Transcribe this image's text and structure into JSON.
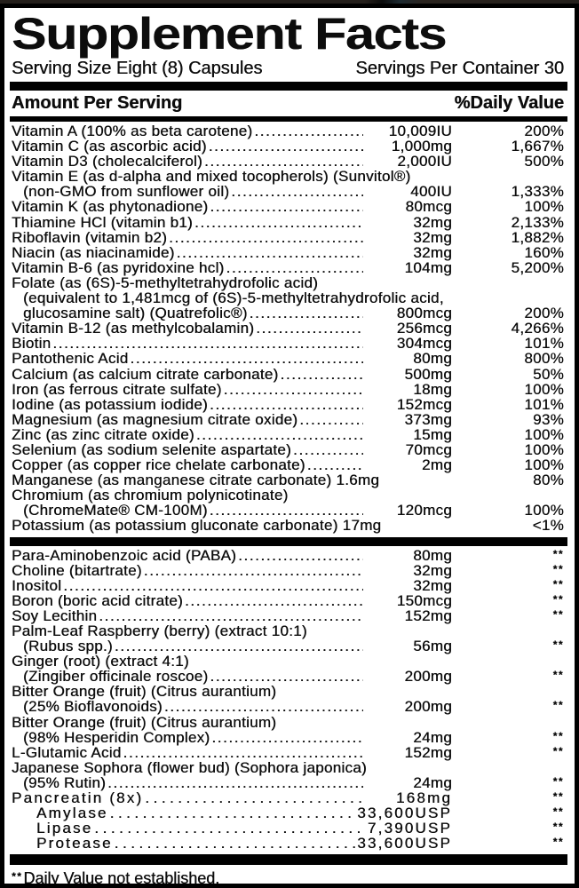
{
  "colors": {
    "background": "#ffffff",
    "text": "#000000",
    "bars": "#000000",
    "top_strip": "#241f1b"
  },
  "label": {
    "title": "Supplement Facts",
    "serving_size": "Serving Size Eight (8) Capsules",
    "servings_per_container": "Servings Per Container 30",
    "column_headers": {
      "amount": "Amount Per Serving",
      "daily_value": "%Daily Value"
    },
    "footnote": {
      "marker": "**",
      "text": "Daily Value not established."
    },
    "sections": [
      {
        "rows": [
          {
            "text": "Vitamin A (100% as beta carotene)",
            "amount": "10,009IU",
            "dv": "200%",
            "dots": true
          },
          {
            "text": "Vitamin C (as ascorbic acid)",
            "amount": "1,000mg",
            "dv": "1,667%",
            "dots": true
          },
          {
            "text": "Vitamin D3 (cholecalciferol)",
            "amount": "2,000IU",
            "dv": "500%",
            "dots": true
          },
          {
            "text": "Vitamin E (as d-alpha and mixed tocopherols) (Sunvitol®)"
          },
          {
            "text": "(non-GMO from sunflower oil)",
            "indent": 1,
            "amount": "400IU",
            "dv": "1,333%",
            "dots": true
          },
          {
            "text": "Vitamin K (as phytonadione)",
            "amount": "80mcg",
            "dv": "100%",
            "dots": true
          },
          {
            "text": "Thiamine HCl (vitamin b1)",
            "amount": "32mg",
            "dv": "2,133%",
            "dots": true
          },
          {
            "text": "Riboflavin (vitamin b2)",
            "amount": "32mg",
            "dv": "1,882%",
            "dots": true
          },
          {
            "text": "Niacin (as niacinamide)",
            "amount": "32mg",
            "dv": "160%",
            "dots": true
          },
          {
            "text": "Vitamin B-6 (as pyridoxine hcl)",
            "amount": "104mg",
            "dv": "5,200%",
            "dots": true
          },
          {
            "text": "Folate (as (6S)-5-methyltetrahydrofolic acid)"
          },
          {
            "text": "(equivalent to 1,481mcg of (6S)-5-methyltetrahydrofolic acid,",
            "indent": 1
          },
          {
            "text": "glucosamine salt) (Quatrefolic®)",
            "indent": 1,
            "amount": "800mcg",
            "dv": "200%",
            "dots": true
          },
          {
            "text": "Vitamin B-12 (as methylcobalamin)",
            "amount": "256mcg",
            "dv": "4,266%",
            "dots": true
          },
          {
            "text": "Biotin",
            "amount": "304mcg",
            "dv": "101%",
            "dots": true
          },
          {
            "text": "Pantothenic Acid",
            "amount": "80mg",
            "dv": "800%",
            "dots": true
          },
          {
            "text": "Calcium (as calcium citrate carbonate)",
            "amount": "500mg",
            "dv": "50%",
            "dots": true
          },
          {
            "text": "Iron (as ferrous citrate sulfate)",
            "amount": "18mg",
            "dv": "100%",
            "dots": true
          },
          {
            "text": "Iodine (as potassium iodide)",
            "amount": "152mcg",
            "dv": "101%",
            "dots": true
          },
          {
            "text": "Magnesium (as magnesium citrate oxide)",
            "amount": "373mg",
            "dv": "93%",
            "dots": true
          },
          {
            "text": "Zinc (as zinc citrate oxide)",
            "amount": "15mg",
            "dv": "100%",
            "dots": true
          },
          {
            "text": "Selenium (as sodium selenite aspartate)",
            "amount": "70mcg",
            "dv": "100%",
            "dots": true
          },
          {
            "text": "Copper (as copper rice chelate carbonate)",
            "amount": "2mg",
            "dv": "100%",
            "dots": true
          },
          {
            "text": "Manganese (as manganese citrate carbonate)",
            "amount": "1.6mg",
            "dv": "80%",
            "dots": false
          },
          {
            "text": "Chromium (as chromium polynicotinate)"
          },
          {
            "text": "(ChromeMate® CM-100M)",
            "indent": 1,
            "amount": "120mcg",
            "dv": "100%",
            "dots": true
          },
          {
            "text": "Potassium (as potassium gluconate carbonate)",
            "amount": "17mg",
            "dv": "<1%",
            "dots": false
          }
        ]
      },
      {
        "rows": [
          {
            "text": "Para-Aminobenzoic acid (PABA)",
            "amount": "80mg",
            "dv": "**",
            "dots": true
          },
          {
            "text": "Choline (bitartrate)",
            "amount": "32mg",
            "dv": "**",
            "dots": true
          },
          {
            "text": "Inositol",
            "amount": "32mg",
            "dv": "**",
            "dots": true
          },
          {
            "text": "Boron (boric acid citrate)",
            "amount": "150mcg",
            "dv": "**",
            "dots": true
          },
          {
            "text": "Soy Lecithin",
            "amount": "152mg",
            "dv": "**",
            "dots": true
          },
          {
            "text": "Palm-Leaf Raspberry (berry) (extract 10:1)"
          },
          {
            "text": "(Rubus spp.)",
            "indent": 1,
            "amount": "56mg",
            "dv": "**",
            "dots": true
          },
          {
            "text": "Ginger (root) (extract 4:1)"
          },
          {
            "text": "(Zingiber officinale roscoe)",
            "indent": 1,
            "amount": "200mg",
            "dv": "**",
            "dots": true
          },
          {
            "text": "Bitter Orange (fruit) (Citrus aurantium)"
          },
          {
            "text": "(25% Bioflavonoids)",
            "indent": 1,
            "amount": "200mg",
            "dv": "**",
            "dots": true
          },
          {
            "text": "Bitter Orange (fruit) (Citrus aurantium)"
          },
          {
            "text": "(98% Hesperidin Complex)",
            "indent": 1,
            "amount": "24mg",
            "dv": "**",
            "dots": true
          },
          {
            "text": "L-Glutamic Acid",
            "amount": "152mg",
            "dv": "**",
            "dots": true
          },
          {
            "text": "Japanese Sophora (flower bud) (Sophora japonica)"
          },
          {
            "text": "(95% Rutin)",
            "indent": 1,
            "amount": "24mg",
            "dv": "**",
            "dots": true
          },
          {
            "text": "Pancreatin (8x)",
            "amount": "168mg",
            "dv": "**",
            "dots": true,
            "spaced": true
          },
          {
            "text": "Amylase",
            "indent": 2,
            "amount": "33,600USP",
            "dv": "**",
            "dots": true,
            "spaced": true
          },
          {
            "text": "Lipase",
            "indent": 2,
            "amount": "7,390USP",
            "dv": "**",
            "dots": true,
            "spaced": true
          },
          {
            "text": "Protease",
            "indent": 2,
            "amount": "33,600USP",
            "dv": "**",
            "dots": true,
            "spaced": true
          }
        ]
      }
    ]
  }
}
